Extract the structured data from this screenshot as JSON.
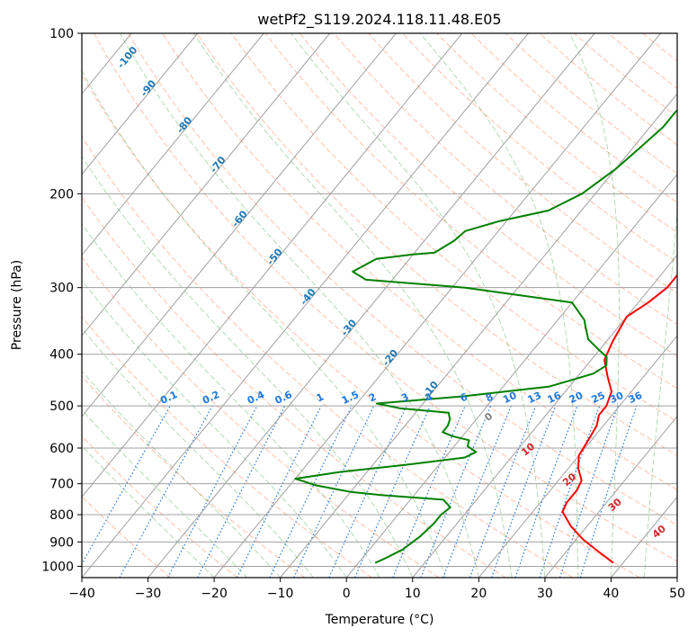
{
  "chart_data": {
    "type": "line",
    "title": "wetPf2_S119.2024.118.11.48.E05",
    "xlabel": "Temperature (°C)",
    "ylabel": "Pressure (hPa)",
    "xlim": [
      -40,
      50
    ],
    "ylim": [
      1050,
      100
    ],
    "y_scale": "log",
    "x_ticks": [
      "−40",
      "−30",
      "−20",
      "−10",
      "0",
      "10",
      "20",
      "30",
      "40",
      "50"
    ],
    "y_ticks": [
      "100",
      "200",
      "300",
      "400",
      "500",
      "600",
      "700",
      "800",
      "900",
      "1000"
    ],
    "grid": true,
    "colors": {
      "temperature": "#ff0000",
      "dewpoint": "#008000",
      "isotherm": "#a0a0a0",
      "dry_adiabat": "#ff8c64",
      "moist_adiabat": "#5aaa5a",
      "mixing_ratio": "#1e78dc",
      "isotherm_label": "#d22828",
      "height_label": "#1f77b4"
    },
    "series": [
      {
        "values": [
          [
            38.5,
            985
          ],
          [
            35,
            940
          ],
          [
            31,
            890
          ],
          [
            27.5,
            840
          ],
          [
            24.5,
            790
          ],
          [
            24,
            760
          ],
          [
            24,
            720
          ],
          [
            23.5,
            690
          ],
          [
            21.5,
            655
          ],
          [
            20,
            620
          ],
          [
            19.5,
            580
          ],
          [
            19,
            545
          ],
          [
            18,
            520
          ],
          [
            18,
            500
          ],
          [
            17,
            470
          ],
          [
            14.5,
            440
          ],
          [
            12,
            410
          ],
          [
            11,
            380
          ],
          [
            10.5,
            360
          ],
          [
            10,
            340
          ],
          [
            11.5,
            320
          ],
          [
            12.5,
            300
          ],
          [
            12.5,
            280
          ],
          [
            12.5,
            260
          ],
          [
            12,
            245
          ],
          [
            10,
            225
          ],
          [
            8,
            205
          ],
          [
            6,
            185
          ],
          [
            4.5,
            170
          ],
          [
            3.5,
            155
          ],
          [
            3.5,
            140
          ],
          [
            3.5,
            130
          ],
          [
            2.5,
            120
          ],
          [
            3.5,
            113
          ],
          [
            5,
            107
          ],
          [
            7,
            100
          ]
        ]
      },
      {
        "values": [
          [
            2.5,
            985
          ],
          [
            3.5,
            965
          ],
          [
            5,
            930
          ],
          [
            6,
            880
          ],
          [
            6.5,
            830
          ],
          [
            6.5,
            800
          ],
          [
            7,
            775
          ],
          [
            5,
            750
          ],
          [
            -5,
            735
          ],
          [
            -10,
            725
          ],
          [
            -16,
            705
          ],
          [
            -20,
            685
          ],
          [
            -14,
            665
          ],
          [
            -5,
            645
          ],
          [
            3,
            625
          ],
          [
            4,
            610
          ],
          [
            2,
            595
          ],
          [
            1.5,
            580
          ],
          [
            -1.5,
            570
          ],
          [
            -3.5,
            560
          ],
          [
            -3.5,
            545
          ],
          [
            -4,
            530
          ],
          [
            -5,
            515
          ],
          [
            -13,
            505
          ],
          [
            -17,
            495
          ],
          [
            -5,
            480
          ],
          [
            7,
            460
          ],
          [
            12,
            435
          ],
          [
            13,
            420
          ],
          [
            12,
            405
          ],
          [
            9.5,
            390
          ],
          [
            7,
            375
          ],
          [
            5,
            355
          ],
          [
            4,
            345
          ],
          [
            0,
            320
          ],
          [
            -18,
            300
          ],
          [
            -34,
            290
          ],
          [
            -37,
            280
          ],
          [
            -35,
            265
          ],
          [
            -30,
            260
          ],
          [
            -27,
            258
          ],
          [
            -25.5,
            245
          ],
          [
            -25,
            235
          ],
          [
            -21,
            225
          ],
          [
            -15,
            215
          ],
          [
            -12,
            200
          ],
          [
            -10,
            180
          ],
          [
            -9,
            165
          ],
          [
            -8,
            150
          ],
          [
            -8,
            140
          ],
          [
            -6.5,
            130
          ],
          [
            -4,
            120
          ],
          [
            -3,
            110
          ],
          [
            -3,
            100
          ]
        ]
      }
    ],
    "mixing_ratio_labels": [
      "0.1",
      "0.2",
      "0.4",
      "0.6",
      "1",
      "1.5",
      "2",
      "3",
      "4",
      "6",
      "8",
      "10",
      "13",
      "16",
      "20",
      "25",
      "30",
      "36"
    ],
    "height_labels": [
      "-100",
      "-90",
      "-80",
      "-70",
      "-60",
      "-50",
      "-40",
      "-30",
      "-20",
      "-10"
    ],
    "isotherm_labels": [
      "0",
      "10",
      "20",
      "30",
      "40"
    ]
  }
}
